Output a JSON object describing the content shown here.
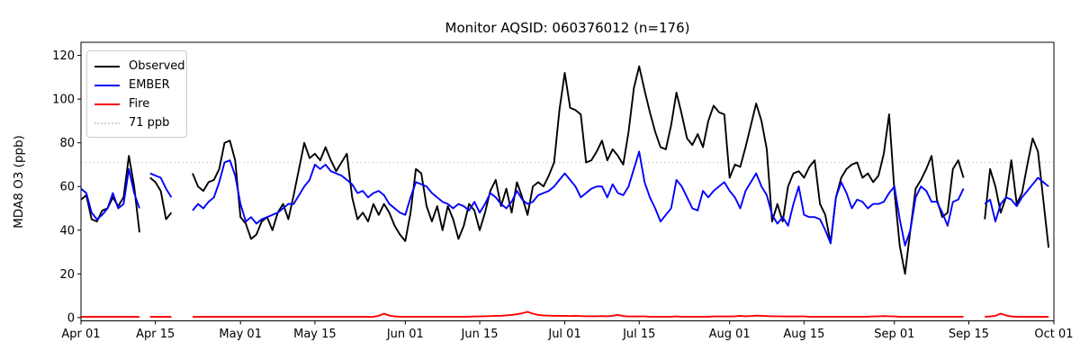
{
  "title": "Monitor AQSID: 060376012 (n=176)",
  "axes": {
    "ylabel": "MDA8 O3 (ppb)"
  },
  "legend": {
    "position": "upper-left",
    "entries": [
      {
        "label": "Observed",
        "color": "#000000",
        "style": "solid"
      },
      {
        "label": "EMBER",
        "color": "#0000ff",
        "style": "solid"
      },
      {
        "label": "Fire",
        "color": "#ff0000",
        "style": "solid"
      },
      {
        "label": "71 ppb",
        "color": "#d3d3d3",
        "style": "dotted"
      }
    ]
  },
  "chart_data": {
    "type": "line",
    "title": "Monitor AQSID: 060376012 (n=176)",
    "xlabel": "",
    "ylabel": "MDA8 O3 (ppb)",
    "x_unit": "days since Apr 01 (daily values, Apr 01 - Sep 30)",
    "xlim": [
      0,
      183
    ],
    "ylim": [
      -1.5,
      126
    ],
    "grid": false,
    "y_ticks": [
      0,
      20,
      40,
      60,
      80,
      100,
      120
    ],
    "x_ticks": [
      {
        "day": 0,
        "label": "Apr 01"
      },
      {
        "day": 14,
        "label": "Apr 15"
      },
      {
        "day": 30,
        "label": "May 01"
      },
      {
        "day": 44,
        "label": "May 15"
      },
      {
        "day": 61,
        "label": "Jun 01"
      },
      {
        "day": 75,
        "label": "Jun 15"
      },
      {
        "day": 91,
        "label": "Jul 01"
      },
      {
        "day": 105,
        "label": "Jul 15"
      },
      {
        "day": 122,
        "label": "Aug 01"
      },
      {
        "day": 136,
        "label": "Aug 15"
      },
      {
        "day": 153,
        "label": "Sep 01"
      },
      {
        "day": 167,
        "label": "Sep 15"
      },
      {
        "day": 183,
        "label": "Oct 01"
      }
    ],
    "ref_line": {
      "value": 71,
      "label": "71 ppb",
      "color": "#d3d3d3",
      "style": "dotted"
    },
    "missing_days": [
      "Apr 13",
      "Apr 19-21",
      "Sep 15-17"
    ],
    "series": [
      {
        "name": "Observed",
        "color": "#000000",
        "values": [
          54,
          56,
          45,
          44,
          49,
          50,
          55,
          51,
          55,
          74,
          60,
          39,
          null,
          64,
          62,
          58,
          45,
          48,
          null,
          null,
          null,
          66,
          60,
          58,
          62,
          63,
          68,
          80,
          81,
          72,
          46,
          43,
          36,
          38,
          44,
          46,
          40,
          48,
          52,
          45,
          56,
          68,
          80,
          73,
          75,
          72,
          78,
          72,
          67,
          71,
          75,
          55,
          45,
          48,
          44,
          52,
          47,
          52,
          48,
          42,
          38,
          35,
          48,
          68,
          66,
          51,
          44,
          51,
          40,
          51,
          45,
          36,
          42,
          52,
          49,
          40,
          48,
          58,
          63,
          51,
          59,
          48,
          62,
          55,
          47,
          60,
          62,
          60,
          65,
          71,
          95,
          112,
          96,
          95,
          93,
          71,
          72,
          76,
          81,
          72,
          77,
          74,
          70,
          85,
          105,
          115,
          104,
          94,
          85,
          78,
          77,
          88,
          103,
          93,
          82,
          79,
          84,
          78,
          90,
          97,
          94,
          93,
          64,
          70,
          69,
          78,
          88,
          98,
          90,
          77,
          44,
          52,
          44,
          60,
          66,
          67,
          64,
          69,
          72,
          52,
          47,
          34,
          55,
          64,
          68,
          70,
          71,
          64,
          66,
          62,
          65,
          75,
          93,
          58,
          33,
          20,
          40,
          59,
          63,
          68,
          74,
          54,
          46,
          48,
          68,
          72,
          64,
          null,
          null,
          null,
          45,
          68,
          60,
          48,
          55,
          72,
          52,
          57,
          70,
          82,
          76,
          54,
          32
        ]
      },
      {
        "name": "EMBER",
        "color": "#0000ff",
        "values": [
          59,
          57,
          48,
          45,
          47,
          50,
          57,
          50,
          52,
          68,
          57,
          50,
          null,
          66,
          65,
          64,
          59,
          55,
          null,
          null,
          null,
          49,
          52,
          50,
          53,
          55,
          62,
          71,
          72,
          65,
          52,
          44,
          46,
          43,
          45,
          46,
          47,
          48,
          50,
          52,
          52,
          56,
          60,
          63,
          70,
          68,
          70,
          67,
          66,
          65,
          63,
          61,
          57,
          58,
          55,
          57,
          58,
          56,
          52,
          50,
          48,
          47,
          55,
          62,
          61,
          60,
          57,
          55,
          53,
          52,
          50,
          52,
          51,
          49,
          53,
          48,
          52,
          57,
          55,
          52,
          50,
          53,
          58,
          54,
          52,
          53,
          56,
          57,
          58,
          60,
          63,
          66,
          63,
          60,
          55,
          57,
          59,
          60,
          60,
          55,
          61,
          57,
          56,
          60,
          68,
          76,
          62,
          55,
          50,
          44,
          47,
          50,
          63,
          60,
          55,
          50,
          49,
          58,
          55,
          58,
          60,
          62,
          58,
          55,
          50,
          58,
          62,
          66,
          60,
          56,
          47,
          43,
          46,
          42,
          52,
          60,
          47,
          46,
          46,
          45,
          40,
          34,
          55,
          62,
          57,
          50,
          54,
          53,
          50,
          52,
          52,
          53,
          57,
          60,
          45,
          33,
          40,
          55,
          60,
          58,
          53,
          53,
          48,
          42,
          53,
          54,
          59,
          null,
          null,
          null,
          52,
          54,
          44,
          52,
          55,
          54,
          51,
          55,
          58,
          61,
          64,
          62,
          60
        ]
      },
      {
        "name": "Fire",
        "color": "#ff0000",
        "values": [
          0.3,
          0.3,
          0.3,
          0.3,
          0.3,
          0.3,
          0.3,
          0.3,
          0.3,
          0.3,
          0.3,
          0.3,
          null,
          0.3,
          0.3,
          0.3,
          0.3,
          0.3,
          null,
          null,
          null,
          0.3,
          0.3,
          0.3,
          0.3,
          0.3,
          0.3,
          0.3,
          0.3,
          0.3,
          0.3,
          0.3,
          0.3,
          0.3,
          0.3,
          0.3,
          0.3,
          0.3,
          0.3,
          0.3,
          0.3,
          0.3,
          0.3,
          0.3,
          0.3,
          0.3,
          0.3,
          0.3,
          0.3,
          0.3,
          0.3,
          0.3,
          0.3,
          0.3,
          0.3,
          0.4,
          0.8,
          1.8,
          0.9,
          0.5,
          0.4,
          0.4,
          0.4,
          0.4,
          0.4,
          0.4,
          0.4,
          0.4,
          0.4,
          0.4,
          0.4,
          0.4,
          0.4,
          0.4,
          0.5,
          0.5,
          0.6,
          0.7,
          0.8,
          0.8,
          1.0,
          1.2,
          1.5,
          2.0,
          2.6,
          1.8,
          1.2,
          1.0,
          0.9,
          0.8,
          0.8,
          0.8,
          0.7,
          0.8,
          0.7,
          0.6,
          0.6,
          0.6,
          0.7,
          0.6,
          0.8,
          1.2,
          0.7,
          0.5,
          0.5,
          0.5,
          0.5,
          0.4,
          0.4,
          0.4,
          0.4,
          0.4,
          0.5,
          0.4,
          0.4,
          0.4,
          0.4,
          0.4,
          0.4,
          0.5,
          0.5,
          0.5,
          0.5,
          0.6,
          0.8,
          0.6,
          0.7,
          0.9,
          0.8,
          0.7,
          0.6,
          0.6,
          0.5,
          0.5,
          0.5,
          0.5,
          0.5,
          0.4,
          0.4,
          0.4,
          0.4,
          0.4,
          0.4,
          0.4,
          0.4,
          0.4,
          0.4,
          0.4,
          0.4,
          0.5,
          0.6,
          0.7,
          0.6,
          0.5,
          0.4,
          0.4,
          0.4,
          0.4,
          0.4,
          0.4,
          0.4,
          0.4,
          0.4,
          0.4,
          0.4,
          0.4,
          0.4,
          null,
          null,
          null,
          0.4,
          0.5,
          0.8,
          1.8,
          1.0,
          0.5,
          0.3,
          0.3,
          0.3,
          0.3,
          0.3,
          0.3,
          0.3
        ]
      }
    ]
  }
}
